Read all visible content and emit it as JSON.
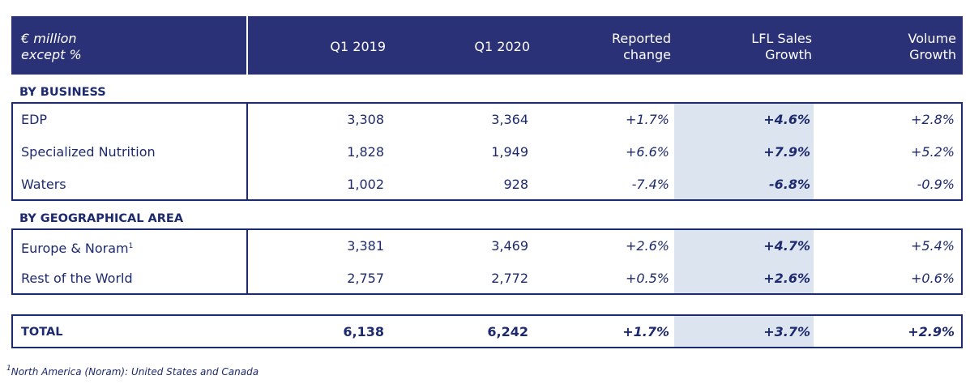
{
  "header": {
    "col0_line1": "€ million",
    "col0_line2": "except %",
    "col1": "Q1 2019",
    "col2": "Q1 2020",
    "col3_line1": "Reported",
    "col3_line2": "change",
    "col4_line1": "LFL Sales",
    "col4_line2": "Growth",
    "col5_line1": "Volume",
    "col5_line2": "Growth"
  },
  "business": {
    "title": "BY BUSINESS",
    "rows": [
      {
        "label": "EDP",
        "q1_2019": "3,308",
        "q1_2020": "3,364",
        "reported": "+1.7%",
        "lfl": "+4.6%",
        "volume": "+2.8%"
      },
      {
        "label": "Specialized Nutrition",
        "q1_2019": "1,828",
        "q1_2020": "1,949",
        "reported": "+6.6%",
        "lfl": "+7.9%",
        "volume": "+5.2%"
      },
      {
        "label": "Waters",
        "q1_2019": "1,002",
        "q1_2020": "928",
        "reported": "-7.4%",
        "lfl": "-6.8%",
        "volume": "-0.9%"
      }
    ]
  },
  "geo": {
    "title": "BY GEOGRAPHICAL AREA",
    "rows": [
      {
        "label": "Europe & Noram",
        "sup": "1",
        "q1_2019": "3,381",
        "q1_2020": "3,469",
        "reported": "+2.6%",
        "lfl": "+4.7%",
        "volume": "+5.4%"
      },
      {
        "label": "Rest of the World",
        "q1_2019": "2,757",
        "q1_2020": "2,772",
        "reported": "+0.5%",
        "lfl": "+2.6%",
        "volume": "+0.6%"
      }
    ]
  },
  "total": {
    "label": "TOTAL",
    "q1_2019": "6,138",
    "q1_2020": "6,242",
    "reported": "+1.7%",
    "lfl": "+3.7%",
    "volume": "+2.9%"
  },
  "footnote": {
    "sup": "1",
    "text": "North America (Noram): United States and Canada"
  }
}
